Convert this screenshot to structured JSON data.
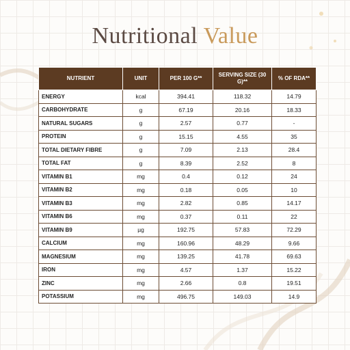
{
  "header": {
    "title_part1": "Nutritional",
    "title_part2": "Value"
  },
  "table": {
    "columns": [
      "NUTRIENT",
      "UNIT",
      "PER 100 G**",
      "SERVING SIZE (30 G)**",
      "% OF RDA**"
    ],
    "rows": [
      [
        "ENERGY",
        "kcal",
        "394.41",
        "118.32",
        "14.79"
      ],
      [
        "CARBOHYDRATE",
        "g",
        "67.19",
        "20.16",
        "18.33"
      ],
      [
        "NATURAL SUGARS",
        "g",
        "2.57",
        "0.77",
        "-"
      ],
      [
        "PROTEIN",
        "g",
        "15.15",
        "4.55",
        "35"
      ],
      [
        "TOTAL DIETARY FIBRE",
        "g",
        "7.09",
        "2.13",
        "28.4"
      ],
      [
        "TOTAL FAT",
        "g",
        "8.39",
        "2.52",
        "8"
      ],
      [
        "VITAMIN B1",
        "mg",
        "0.4",
        "0.12",
        "24"
      ],
      [
        "VITAMIN B2",
        "mg",
        "0.18",
        "0.05",
        "10"
      ],
      [
        "VITAMIN B3",
        "mg",
        "2.82",
        "0.85",
        "14.17"
      ],
      [
        "VITAMIN B6",
        "mg",
        "0.37",
        "0.11",
        "22"
      ],
      [
        "VITAMIN B9",
        "µg",
        "192.75",
        "57.83",
        "72.29"
      ],
      [
        "CALCIUM",
        "mg",
        "160.96",
        "48.29",
        "9.66"
      ],
      [
        "MAGNESIUM",
        "mg",
        "139.25",
        "41.78",
        "69.63"
      ],
      [
        "IRON",
        "mg",
        "4.57",
        "1.37",
        "15.22"
      ],
      [
        "ZINC",
        "mg",
        "2.66",
        "0.8",
        "19.51"
      ],
      [
        "POTASSIUM",
        "mg",
        "496.75",
        "149.03",
        "14.9"
      ]
    ]
  }
}
